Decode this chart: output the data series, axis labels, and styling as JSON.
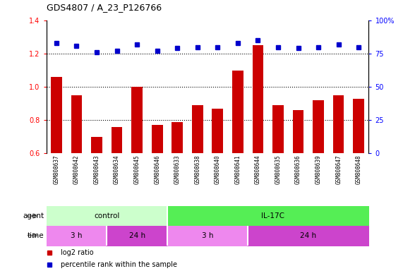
{
  "title": "GDS4807 / A_23_P126766",
  "samples": [
    "GSM808637",
    "GSM808642",
    "GSM808643",
    "GSM808634",
    "GSM808645",
    "GSM808646",
    "GSM808633",
    "GSM808638",
    "GSM808640",
    "GSM808641",
    "GSM808644",
    "GSM808635",
    "GSM808636",
    "GSM808639",
    "GSM808647",
    "GSM808648"
  ],
  "log2_ratio": [
    1.06,
    0.95,
    0.7,
    0.76,
    1.0,
    0.77,
    0.79,
    0.89,
    0.87,
    1.1,
    1.25,
    0.89,
    0.86,
    0.92,
    0.95,
    0.93
  ],
  "percentile": [
    83,
    81,
    76,
    77,
    82,
    77,
    79,
    80,
    80,
    83,
    85,
    80,
    79,
    80,
    82,
    80
  ],
  "ylim_left": [
    0.6,
    1.4
  ],
  "ylim_right": [
    0,
    100
  ],
  "yticks_left": [
    0.6,
    0.8,
    1.0,
    1.2,
    1.4
  ],
  "yticks_right": [
    0,
    25,
    50,
    75,
    100
  ],
  "bar_color": "#cc0000",
  "dot_color": "#0000cc",
  "agent_control_color": "#ccffcc",
  "agent_il17c_color": "#55ee55",
  "time_3h_color": "#ee88ee",
  "time_24h_color": "#cc44cc",
  "agent_label": "agent",
  "time_label": "time",
  "grid_color": "#c8c8c8",
  "tick_bg_color": "#d0d0d0"
}
